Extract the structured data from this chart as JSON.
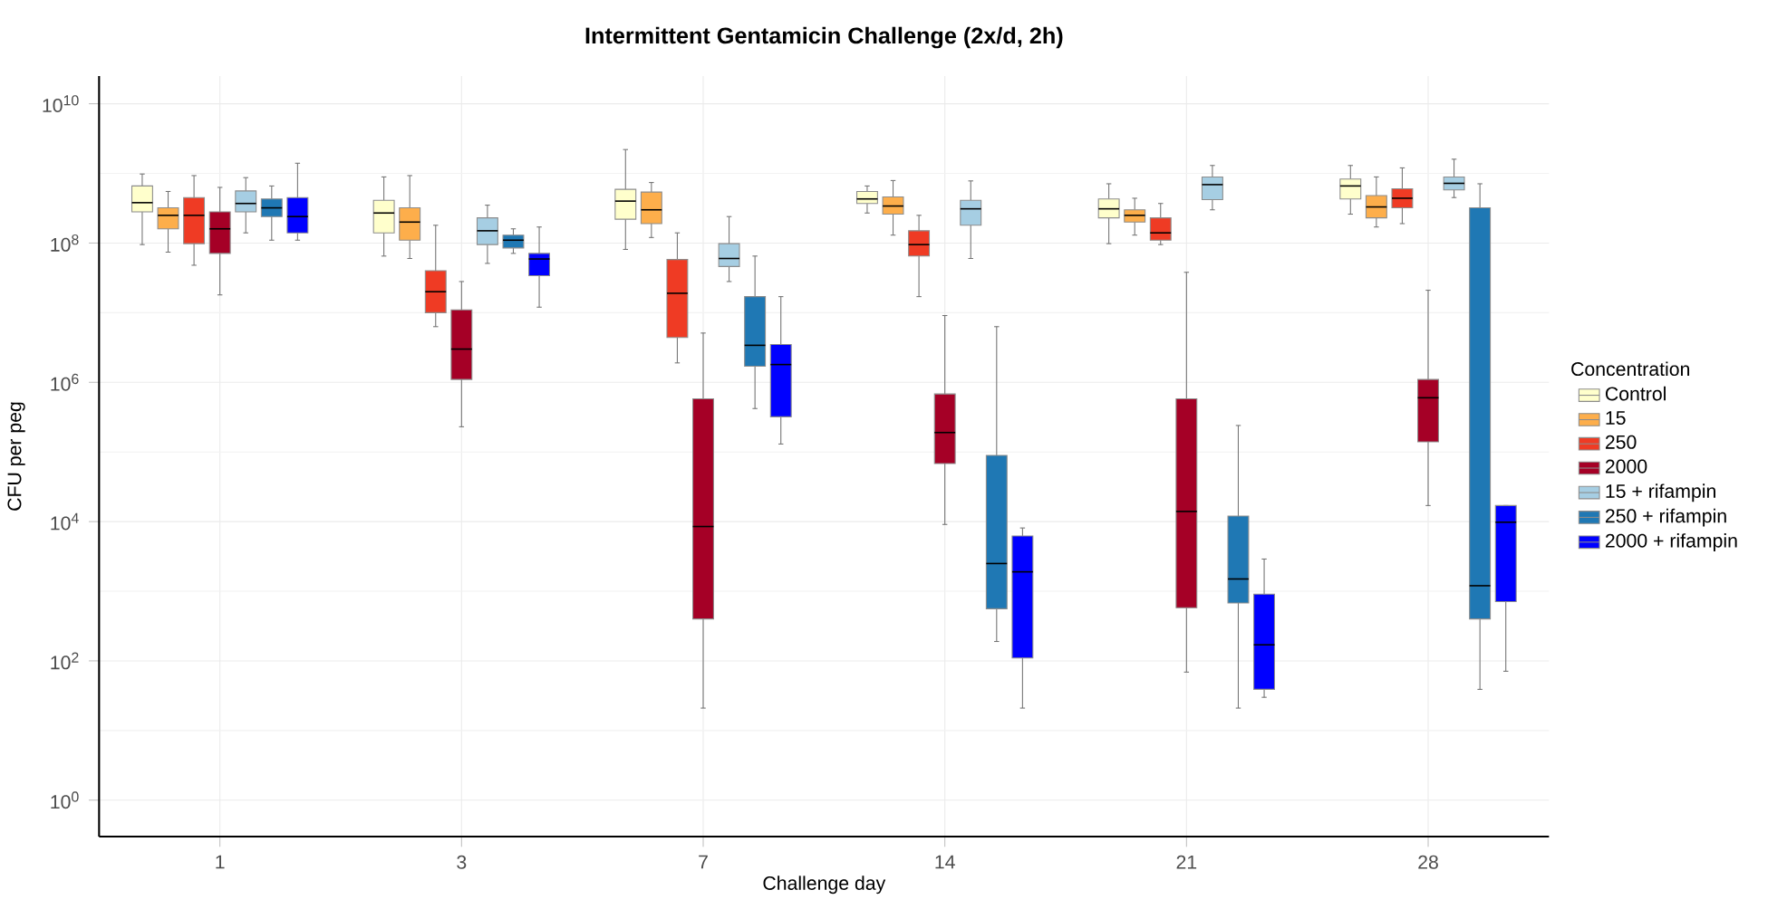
{
  "chart_data": {
    "type": "box",
    "title": "Intermittent Gentamicin Challenge (2x/d, 2h)",
    "xlabel": "Challenge day",
    "ylabel": "CFU per peg",
    "legend_title": "Concentration",
    "categories": [
      "1",
      "3",
      "7",
      "14",
      "21",
      "28"
    ],
    "series": [
      {
        "name": "Control",
        "color": "#ffffcc",
        "boxes": [
          {
            "low": 95000000.0,
            "q1": 280000000.0,
            "median": 380000000.0,
            "q3": 660000000.0,
            "high": 980000000.0
          },
          {
            "low": 65000000.0,
            "q1": 140000000.0,
            "median": 270000000.0,
            "q3": 410000000.0,
            "high": 890000000.0
          },
          {
            "low": 81000000.0,
            "q1": 220000000.0,
            "median": 400000000.0,
            "q3": 590000000.0,
            "high": 2200000000.0
          },
          {
            "low": 270000000.0,
            "q1": 370000000.0,
            "median": 430000000.0,
            "q3": 550000000.0,
            "high": 660000000.0
          },
          {
            "low": 98000000.0,
            "q1": 230000000.0,
            "median": 310000000.0,
            "q3": 430000000.0,
            "high": 710000000.0
          },
          {
            "low": 260000000.0,
            "q1": 430000000.0,
            "median": 660000000.0,
            "q3": 830000000.0,
            "high": 1300000000.0
          }
        ]
      },
      {
        "name": "15",
        "color": "#fdae4b",
        "boxes": [
          {
            "low": 74000000.0,
            "q1": 160000000.0,
            "median": 250000000.0,
            "q3": 320000000.0,
            "high": 550000000.0
          },
          {
            "low": 60000000.0,
            "q1": 110000000.0,
            "median": 200000000.0,
            "q3": 320000000.0,
            "high": 930000000.0
          },
          {
            "low": 120000000.0,
            "q1": 190000000.0,
            "median": 300000000.0,
            "q3": 540000000.0,
            "high": 740000000.0
          },
          {
            "low": 130000000.0,
            "q1": 260000000.0,
            "median": 340000000.0,
            "q3": 460000000.0,
            "high": 790000000.0
          },
          {
            "low": 130000000.0,
            "q1": 200000000.0,
            "median": 250000000.0,
            "q3": 300000000.0,
            "high": 440000000.0
          },
          {
            "low": 170000000.0,
            "q1": 230000000.0,
            "median": 330000000.0,
            "q3": 480000000.0,
            "high": 890000000.0
          }
        ]
      },
      {
        "name": "250",
        "color": "#ef3b24",
        "boxes": [
          {
            "low": 48000000.0,
            "q1": 98000000.0,
            "median": 250000000.0,
            "q3": 450000000.0,
            "high": 930000000.0
          },
          {
            "low": 6300000.0,
            "q1": 10000000.0,
            "median": 20000000.0,
            "q3": 40000000.0,
            "high": 180000000.0
          },
          {
            "low": 1900000.0,
            "q1": 4400000.0,
            "median": 19000000.0,
            "q3": 58000000.0,
            "high": 140000000.0
          },
          {
            "low": 17000000.0,
            "q1": 65000000.0,
            "median": 95000000.0,
            "q3": 150000000.0,
            "high": 250000000.0
          },
          {
            "low": 95000000.0,
            "q1": 110000000.0,
            "median": 140000000.0,
            "q3": 230000000.0,
            "high": 370000000.0
          },
          {
            "low": 190000000.0,
            "q1": 320000000.0,
            "median": 440000000.0,
            "q3": 600000000.0,
            "high": 1200000000.0
          }
        ]
      },
      {
        "name": "2000",
        "color": "#a50026",
        "boxes": [
          {
            "low": 18000000.0,
            "q1": 71000000.0,
            "median": 160000000.0,
            "q3": 280000000.0,
            "high": 630000000.0
          },
          {
            "low": 230000.0,
            "q1": 1100000.0,
            "median": 3000000.0,
            "q3": 11000000.0,
            "high": 28000000.0
          },
          {
            "low": 21,
            "q1": 400,
            "median": 8500,
            "q3": 580000.0,
            "high": 5100000.0
          },
          {
            "low": 9100,
            "q1": 68000.0,
            "median": 190000.0,
            "q3": 680000.0,
            "high": 9100000.0
          },
          {
            "low": 69,
            "q1": 580,
            "median": 14000.0,
            "q3": 580000.0,
            "high": 38000000.0
          },
          {
            "low": 17000.0,
            "q1": 140000.0,
            "median": 600000.0,
            "q3": 1100000.0,
            "high": 21000000.0
          }
        ]
      },
      {
        "name": "15 + rifampin",
        "color": "#a6cee3",
        "boxes": [
          {
            "low": 140000000.0,
            "q1": 280000000.0,
            "median": 370000000.0,
            "q3": 560000000.0,
            "high": 870000000.0
          },
          {
            "low": 51000000.0,
            "q1": 95000000.0,
            "median": 150000000.0,
            "q3": 230000000.0,
            "high": 350000000.0
          },
          {
            "low": 28000000.0,
            "q1": 46000000.0,
            "median": 60000000.0,
            "q3": 98000000.0,
            "high": 240000000.0
          },
          {
            "low": 60000000.0,
            "q1": 180000000.0,
            "median": 310000000.0,
            "q3": 410000000.0,
            "high": 780000000.0
          },
          {
            "low": 300000000.0,
            "q1": 420000000.0,
            "median": 690000000.0,
            "q3": 890000000.0,
            "high": 1300000000.0
          },
          {
            "low": 450000000.0,
            "q1": 580000000.0,
            "median": 720000000.0,
            "q3": 890000000.0,
            "high": 1600000000.0
          }
        ]
      },
      {
        "name": "250 + rifampin",
        "color": "#1f78b4",
        "boxes": [
          {
            "low": 110000000.0,
            "q1": 240000000.0,
            "median": 320000000.0,
            "q3": 430000000.0,
            "high": 660000000.0
          },
          {
            "low": 71000000.0,
            "q1": 85000000.0,
            "median": 110000000.0,
            "q3": 130000000.0,
            "high": 160000000.0
          },
          {
            "low": 420000.0,
            "q1": 1700000.0,
            "median": 3400000.0,
            "q3": 17000000.0,
            "high": 65000000.0
          },
          {
            "low": 190,
            "q1": 560,
            "median": 2500,
            "q3": 89000.0,
            "high": 6300000.0
          },
          {
            "low": 21,
            "q1": 680,
            "median": 1500,
            "q3": 12000.0,
            "high": 240000.0
          },
          {
            "low": 39,
            "q1": 400,
            "median": 1200,
            "q3": 320000000.0,
            "high": 710000000.0
          }
        ]
      },
      {
        "name": "2000 + rifampin",
        "color": "#0000ff",
        "boxes": [
          {
            "low": 110000000.0,
            "q1": 140000000.0,
            "median": 240000000.0,
            "q3": 450000000.0,
            "high": 1400000000.0
          },
          {
            "low": 12000000.0,
            "q1": 34000000.0,
            "median": 59000000.0,
            "q3": 71000000.0,
            "high": 170000000.0
          },
          {
            "low": 130000.0,
            "q1": 320000.0,
            "median": 1800000.0,
            "q3": 3500000.0,
            "high": 17000000.0
          },
          {
            "low": 21,
            "q1": 110,
            "median": 1900,
            "q3": 6200,
            "high": 8100
          },
          {
            "low": 30,
            "q1": 39,
            "median": 170,
            "q3": 910,
            "high": 2900
          },
          {
            "low": 71,
            "q1": 710,
            "median": 9800,
            "q3": 17000.0,
            "high": 17000.0
          }
        ]
      }
    ],
    "log": true,
    "ylim": [
      0.3,
      25000000000.0
    ],
    "yticks": [
      {
        "value": 1,
        "label": "10$^{0}$"
      },
      {
        "value": 100,
        "label": "10$^{2}$"
      },
      {
        "value": 10000,
        "label": "10$^{4}$"
      },
      {
        "value": 1000000,
        "label": "10$^{6}$"
      },
      {
        "value": 100000000,
        "label": "10$^{8}$"
      },
      {
        "value": 10000000000,
        "label": "10$^{10}$"
      }
    ],
    "grid": true,
    "legend": "right"
  }
}
